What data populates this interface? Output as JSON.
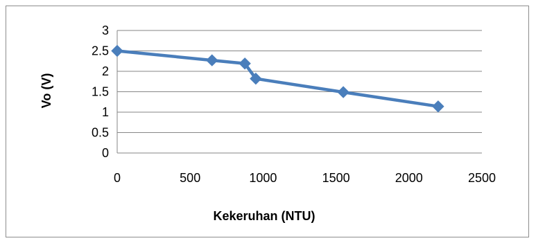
{
  "chart_data": {
    "type": "line",
    "title": "",
    "xlabel": "Kekeruhan (NTU)",
    "ylabel": "Vo (V)",
    "xlim": [
      0,
      2500
    ],
    "ylim": [
      0,
      3
    ],
    "x_ticks": [
      0,
      500,
      1000,
      1500,
      2000,
      2500
    ],
    "y_ticks": [
      0,
      0.5,
      1,
      1.5,
      2,
      2.5,
      3
    ],
    "grid": "horizontal",
    "legend": "none",
    "series": [
      {
        "color": "#4a7ebb",
        "marker": "diamond",
        "x": [
          0,
          650,
          875,
          950,
          1550,
          2200
        ],
        "y": [
          2.5,
          2.27,
          2.19,
          1.82,
          1.49,
          1.14
        ]
      }
    ]
  }
}
